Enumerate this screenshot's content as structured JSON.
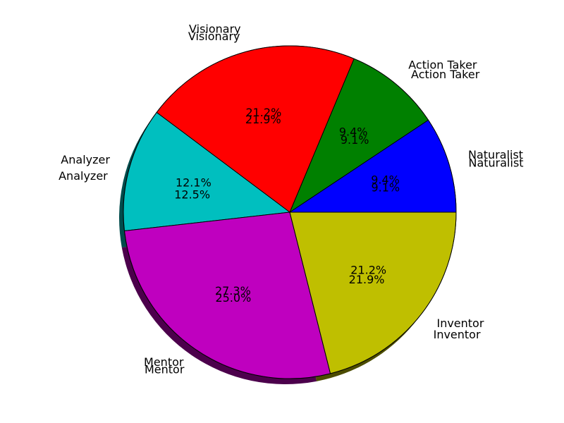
{
  "chart_data": {
    "type": "pie",
    "title": "",
    "shadow": true,
    "layers": [
      {
        "name": "",
        "slices": [
          {
            "label": "Naturalist",
            "value": 9.1,
            "pct_text": "9.1%",
            "color": "#0000ff"
          },
          {
            "label": "Action Taker",
            "value": 9.1,
            "pct_text": "9.1%",
            "color": "#008000"
          },
          {
            "label": "Visionary",
            "value": 21.9,
            "pct_text": "21.9%",
            "color": "#ff0000"
          },
          {
            "label": "Analyzer",
            "value": 12.5,
            "pct_text": "12.5%",
            "color": "#00bfbf"
          },
          {
            "label": "Mentor",
            "value": 25.0,
            "pct_text": "25.0%",
            "color": "#bf00bf"
          },
          {
            "label": "Inventor",
            "value": 21.9,
            "pct_text": "21.9%",
            "color": "#bfbf00"
          }
        ]
      },
      {
        "name": "",
        "slices": [
          {
            "label": "Naturalist",
            "value": 9.4,
            "pct_text": "9.4%",
            "color": "#0000ff"
          },
          {
            "label": "Action Taker",
            "value": 9.4,
            "pct_text": "9.4%",
            "color": "#008000"
          },
          {
            "label": "Visionary",
            "value": 21.2,
            "pct_text": "21.2%",
            "color": "#ff0000"
          },
          {
            "label": "Analyzer",
            "value": 12.1,
            "pct_text": "12.1%",
            "color": "#00bfbf"
          },
          {
            "label": "Mentor",
            "value": 27.3,
            "pct_text": "27.3%",
            "color": "#bf00bf"
          },
          {
            "label": "Inventor",
            "value": 21.2,
            "pct_text": "21.2%",
            "color": "#bfbf00"
          }
        ]
      }
    ]
  }
}
